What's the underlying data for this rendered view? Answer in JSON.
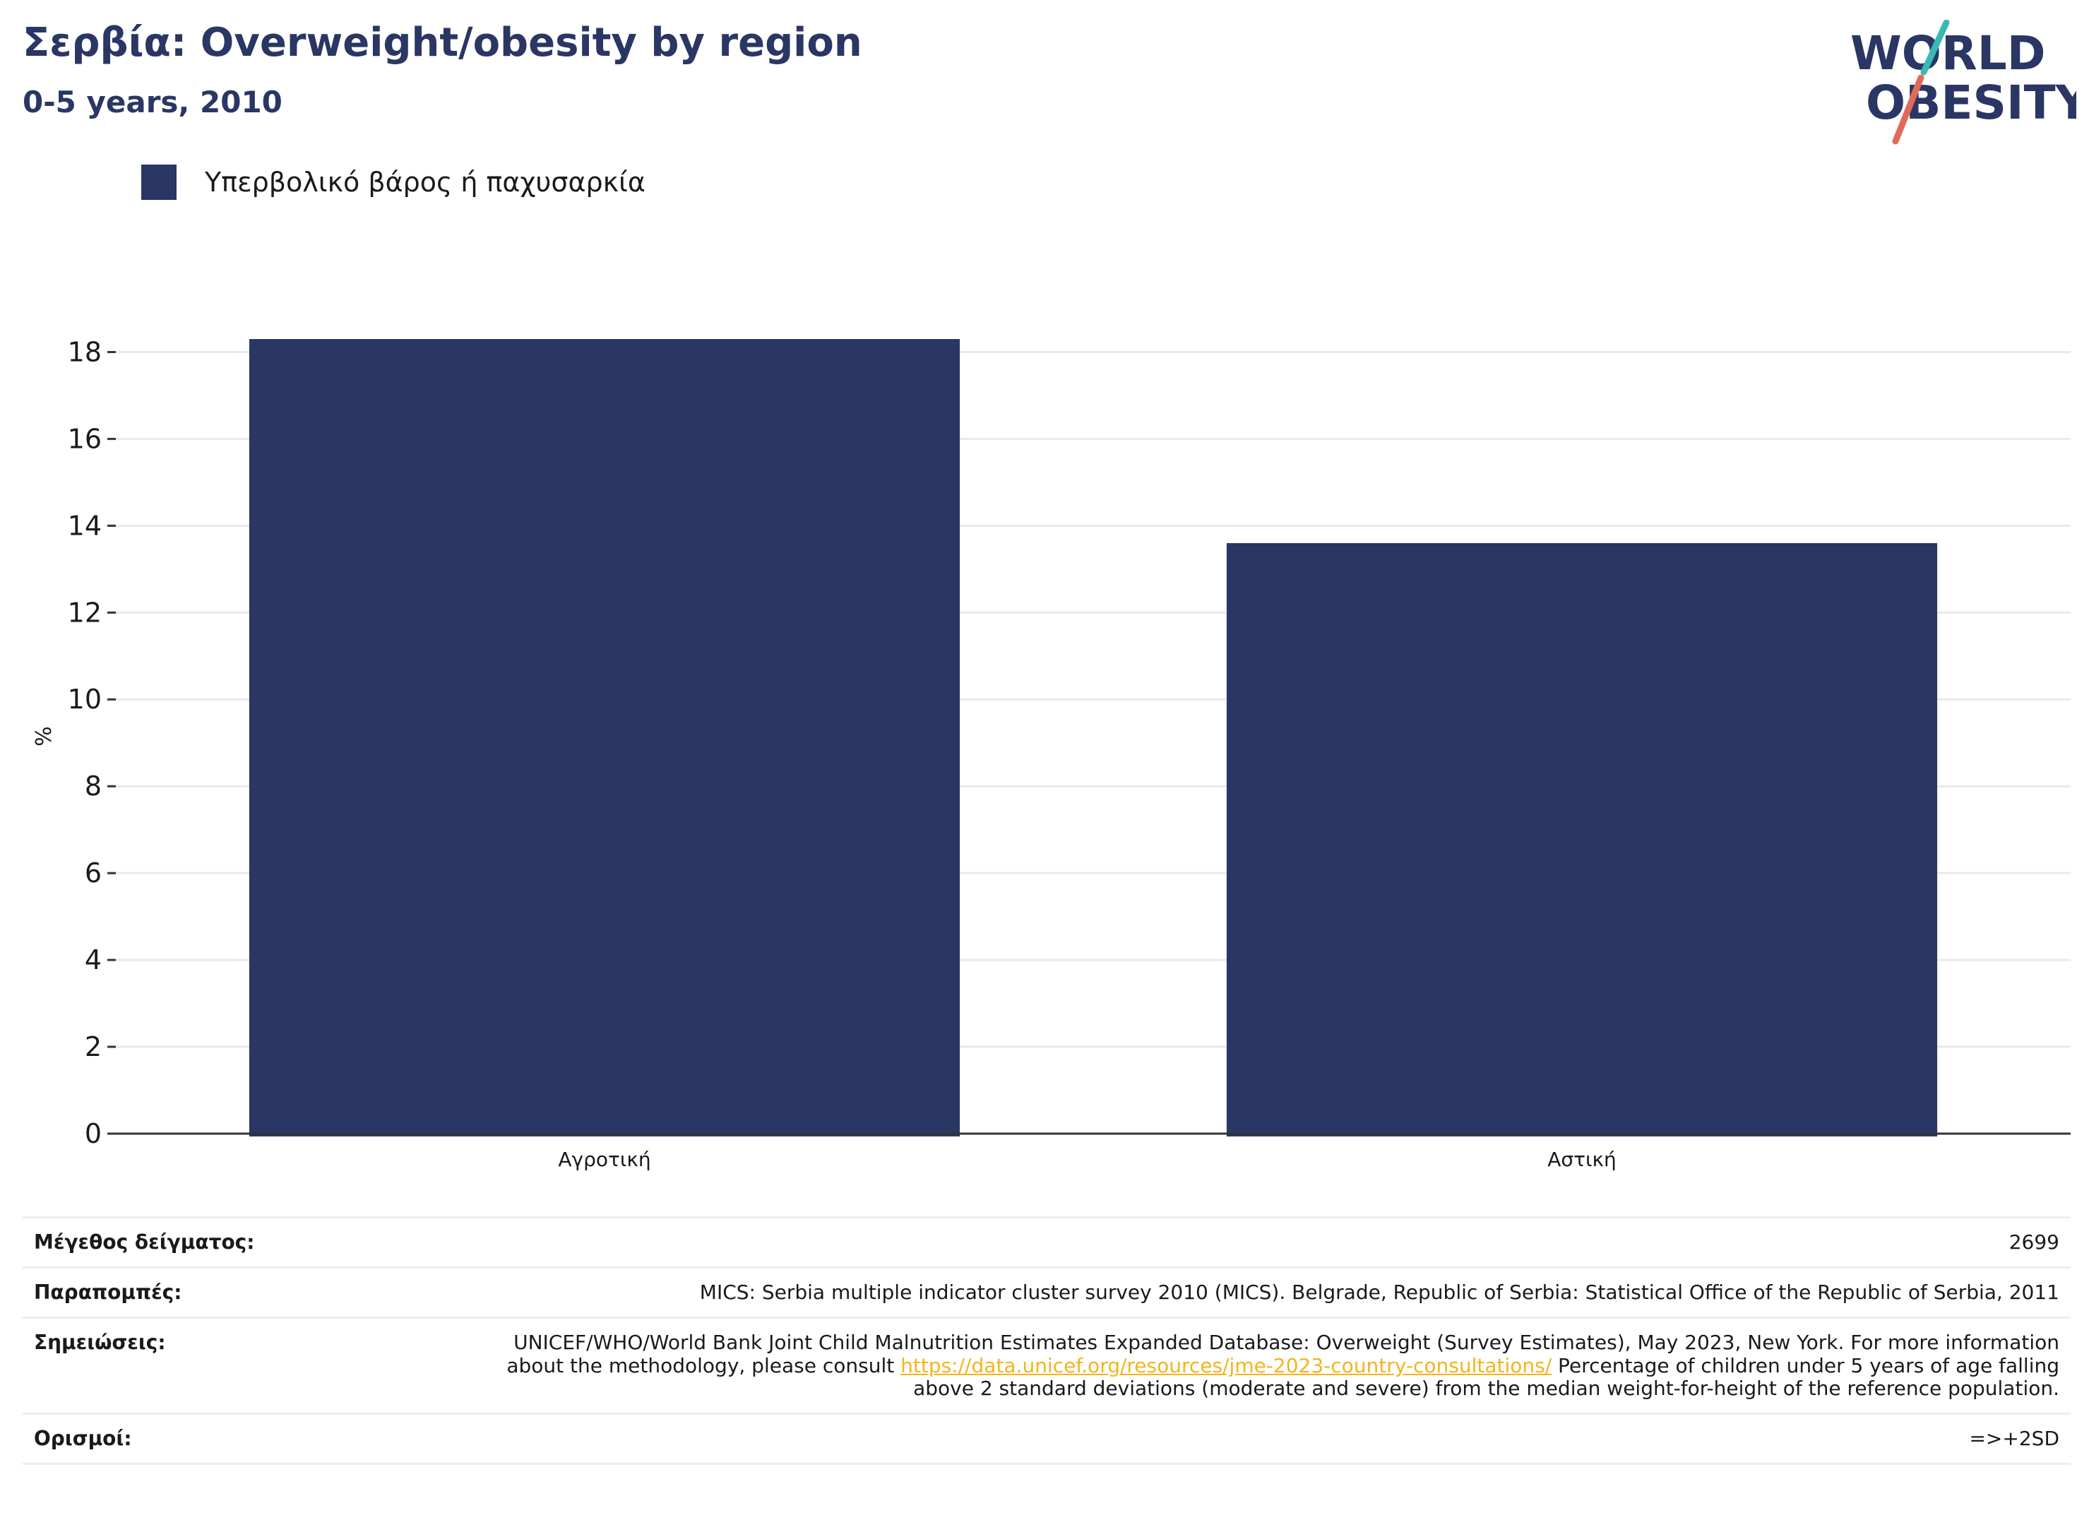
{
  "header": {
    "title": "Σερβία: Overweight/obesity by region",
    "subtitle": "0-5 years, 2010"
  },
  "logo": {
    "line1": "WORLD",
    "line2": "OBESITY"
  },
  "legend": {
    "label": "Υπερβολικό βάρος ή παχυσαρκία",
    "color": "#2a3663"
  },
  "chart_data": {
    "type": "bar",
    "categories": [
      "Αγροτική",
      "Αστική"
    ],
    "series": [
      {
        "name": "Υπερβολικό βάρος ή παχυσαρκία",
        "values": [
          18.3,
          13.6
        ],
        "color": "#2a3663"
      }
    ],
    "ylabel": "%",
    "ylim": [
      0,
      18.3
    ],
    "yticks": [
      0,
      2,
      4,
      6,
      8,
      10,
      12,
      14,
      16,
      18
    ],
    "grid": true,
    "legend_position": "top-left"
  },
  "info": {
    "sample_size": {
      "label": "Μέγεθος δείγματος:",
      "value": "2699"
    },
    "references": {
      "label": "Παραπομπές:",
      "value": "MICS: Serbia multiple indicator cluster survey 2010 (MICS). Belgrade, Republic of Serbia: Statistical Office of the Republic of Serbia, 2011"
    },
    "notes": {
      "label": "Σημειώσεις:",
      "text_before": "UNICEF/WHO/World Bank Joint Child Malnutrition Estimates Expanded Database: Overweight (Survey Estimates), May 2023, New York. For more information about the methodology, please consult ",
      "link": "https://data.unicef.org/resources/jme-2023-country-consultations/",
      "text_after": " Percentage of children under 5 years of age falling above 2 standard deviations (moderate and severe) from the median weight-for-height of the reference population."
    },
    "definitions": {
      "label": "Ορισμοί:",
      "value": "=>+2SD"
    }
  }
}
